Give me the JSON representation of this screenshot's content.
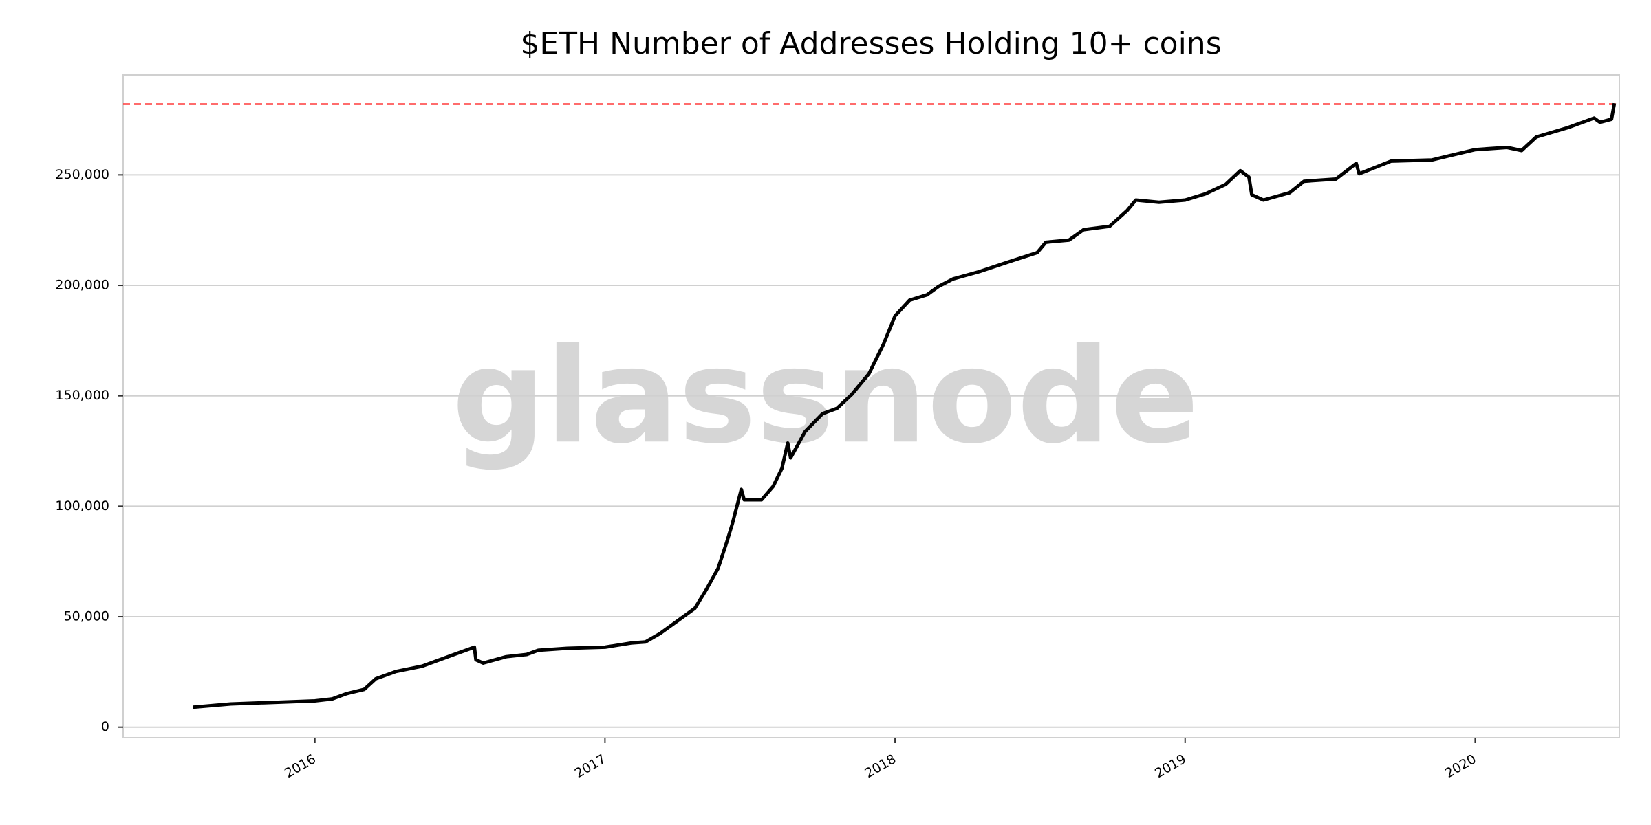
{
  "chart_data": {
    "type": "line",
    "title": "$ETH Number of Addresses Holding 10+ coins",
    "watermark": "glassnode",
    "x": [
      2015.58,
      2015.71,
      2016.0,
      2016.06,
      2016.11,
      2016.17,
      2016.21,
      2016.28,
      2016.37,
      2016.48,
      2016.55,
      2016.555,
      2016.58,
      2016.66,
      2016.73,
      2016.77,
      2016.87,
      2017.0,
      2017.09,
      2017.14,
      2017.19,
      2017.26,
      2017.31,
      2017.35,
      2017.39,
      2017.42,
      2017.44,
      2017.47,
      2017.48,
      2017.54,
      2017.58,
      2017.61,
      2017.63,
      2017.64,
      2017.69,
      2017.75,
      2017.8,
      2017.85,
      2017.91,
      2017.96,
      2018.0,
      2018.05,
      2018.11,
      2018.15,
      2018.2,
      2018.29,
      2018.4,
      2018.49,
      2018.52,
      2018.6,
      2018.65,
      2018.74,
      2018.8,
      2018.83,
      2018.91,
      2019.0,
      2019.07,
      2019.14,
      2019.19,
      2019.22,
      2019.23,
      2019.27,
      2019.36,
      2019.41,
      2019.52,
      2019.59,
      2019.6,
      2019.71,
      2019.85,
      2019.91,
      2020.0,
      2020.11,
      2020.16,
      2020.21,
      2020.32,
      2020.41,
      2020.43,
      2020.47,
      2020.48
    ],
    "values": [
      9000,
      10500,
      11900,
      12800,
      15200,
      17100,
      21900,
      25200,
      27600,
      32900,
      36200,
      30500,
      29000,
      31900,
      32900,
      34800,
      35700,
      36200,
      38100,
      38600,
      42400,
      49000,
      53800,
      62400,
      71900,
      83800,
      92400,
      107600,
      102900,
      102900,
      109000,
      117100,
      128600,
      121900,
      133800,
      141900,
      144300,
      150500,
      160000,
      173300,
      186200,
      193300,
      195700,
      199500,
      202900,
      206200,
      211000,
      214800,
      219500,
      220500,
      225200,
      226700,
      233800,
      238600,
      237600,
      238600,
      241400,
      245700,
      251900,
      249000,
      241000,
      238600,
      241900,
      247100,
      248100,
      255200,
      250500,
      256200,
      256700,
      258600,
      261400,
      262400,
      261000,
      267100,
      271400,
      275700,
      273800,
      275200,
      282400
    ],
    "color": "#000000",
    "reference_line": {
      "value": 282000,
      "color": "#ff3b3b"
    },
    "xlim": [
      2015.339,
      2020.497
    ],
    "xticks": [
      2016,
      2017,
      2018,
      2019,
      2020
    ],
    "ylim": [
      -4762,
      295238
    ],
    "yticks": [
      0,
      {
        "value": 50000,
        "label": "50,000"
      },
      {
        "value": 100000,
        "label": "100,000"
      },
      {
        "value": 150000,
        "label": "150,000"
      },
      {
        "value": 200000,
        "label": "200,000"
      },
      {
        "value": 250000,
        "label": "250,000"
      }
    ],
    "grid": true
  }
}
